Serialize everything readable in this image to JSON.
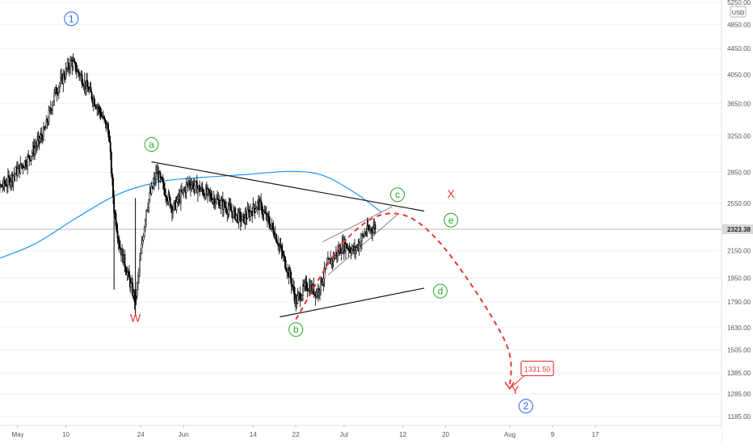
{
  "chart_data": {
    "type": "candlestick",
    "axes": {
      "y_scale": "log",
      "y_ticks": [
        "5250.00",
        "4850.00",
        "4450.00",
        "4050.00",
        "3650.00",
        "3250.00",
        "2850.00",
        "2550.00",
        "2150.00",
        "1950.00",
        "1790.00",
        "1630.00",
        "1505.00",
        "1385.00",
        "1285.00",
        "1185.00"
      ],
      "x_ticks": [
        "May",
        "10",
        "24",
        "Jun",
        "14",
        "22",
        "Jul",
        "12",
        "20",
        "Aug",
        "9",
        "17"
      ],
      "currency_label": "USD",
      "current_price_label": "2323.38"
    },
    "colors": {
      "candles": "#000000",
      "moving_average": "#2196f3",
      "wave_labels_primary": "#2962ff",
      "wave_labels_corrective": "#22ab22",
      "wave_labels_combo": "#e53935",
      "projection": "#e53935",
      "trendlines": "#1a1a1a"
    },
    "moving_average": [
      [
        "Apr 26",
        2070
      ],
      [
        "May 4",
        2200
      ],
      [
        "May 12",
        2420
      ],
      [
        "May 20",
        2640
      ],
      [
        "May 28",
        2760
      ],
      [
        "Jun 5",
        2800
      ],
      [
        "Jun 13",
        2830
      ],
      [
        "Jun 21",
        2860
      ],
      [
        "Jun 27",
        2820
      ],
      [
        "Jul 3",
        2650
      ],
      [
        "Jul 8",
        2470
      ]
    ],
    "price_path": [
      [
        "Apr 25",
        2600
      ],
      [
        "Apr 29",
        2750
      ],
      [
        "May 3",
        3000
      ],
      [
        "May 6",
        3300
      ],
      [
        "May 8",
        3800
      ],
      [
        "May 11",
        4250
      ],
      [
        "May 13",
        4000
      ],
      [
        "May 16",
        3600
      ],
      [
        "May 18",
        3300
      ],
      [
        "May 19",
        2500
      ],
      [
        "May 20",
        2200
      ],
      [
        "May 23",
        1790
      ],
      [
        "May 25",
        2500
      ],
      [
        "May 27",
        2850
      ],
      [
        "May 30",
        2500
      ],
      [
        "Jun 2",
        2750
      ],
      [
        "Jun 5",
        2650
      ],
      [
        "Jun 8",
        2550
      ],
      [
        "Jun 12",
        2400
      ],
      [
        "Jun 15",
        2550
      ],
      [
        "Jun 18",
        2300
      ],
      [
        "Jun 21",
        1950
      ],
      [
        "Jun 22",
        1790
      ],
      [
        "Jun 24",
        1900
      ],
      [
        "Jun 26",
        1850
      ],
      [
        "Jun 28",
        2050
      ],
      [
        "Jul 1",
        2200
      ],
      [
        "Jul 3",
        2150
      ],
      [
        "Jul 5",
        2300
      ],
      [
        "Jul 7",
        2350
      ]
    ],
    "trendlines": [
      {
        "name": "upper-triangle",
        "from": [
          "May 26",
          2960
        ],
        "to": [
          "Jul 16",
          2480
        ]
      },
      {
        "name": "lower-triangle",
        "from": [
          "Jun 19",
          1695
        ],
        "to": [
          "Jul 16",
          1880
        ]
      },
      {
        "name": "channel-upper",
        "from": [
          "Jun 27",
          2220
        ],
        "to": [
          "Jul 10",
          2520
        ]
      },
      {
        "name": "channel-lower",
        "from": [
          "Jun 28",
          1970
        ],
        "to": [
          "Jul 11",
          2450
        ]
      }
    ],
    "projection": {
      "style": "dashed",
      "points": [
        [
          "Jun 22",
          1680
        ],
        [
          "Jul 1",
          2220
        ],
        [
          "Jul 10",
          2460
        ],
        [
          "Jul 19",
          2210
        ],
        [
          "Jul 31",
          1560
        ],
        [
          "Aug 1",
          1310
        ]
      ]
    },
    "target_label": "1331.50",
    "wave_labels": [
      {
        "text": "1",
        "style": "circle",
        "color": "#2962ff",
        "date": "May 11",
        "price": 4950
      },
      {
        "text": "2",
        "style": "circle",
        "color": "#2962ff",
        "date": "Aug 4",
        "price": 1230
      },
      {
        "text": "W",
        "style": "plain",
        "color": "#e53935",
        "date": "May 23",
        "price": 1690
      },
      {
        "text": "X",
        "style": "plain",
        "color": "#e53935",
        "date": "Jul 21",
        "price": 2640
      },
      {
        "text": "Y",
        "style": "plain",
        "color": "#e53935",
        "date": "Aug 2",
        "price": 1305
      },
      {
        "text": "a",
        "style": "circle",
        "color": "#22ab22",
        "date": "May 26",
        "price": 3150
      },
      {
        "text": "b",
        "style": "circle",
        "color": "#22ab22",
        "date": "Jun 22",
        "price": 1620
      },
      {
        "text": "c",
        "style": "circle",
        "color": "#22ab22",
        "date": "Jul 11",
        "price": 2630
      },
      {
        "text": "d",
        "style": "circle",
        "color": "#22ab22",
        "date": "Jul 19",
        "price": 1860
      },
      {
        "text": "e",
        "style": "circle",
        "color": "#22ab22",
        "date": "Jul 21",
        "price": 2400
      }
    ]
  }
}
